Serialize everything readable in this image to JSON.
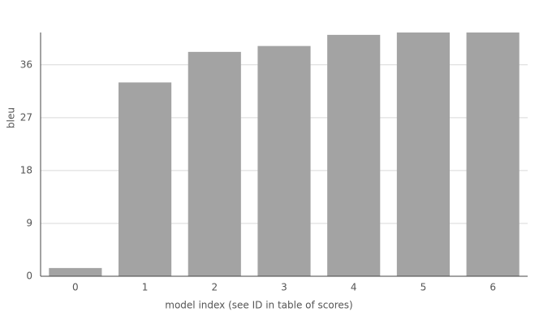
{
  "chart_data": {
    "type": "bar",
    "x_label": "model index (see ID in table of scores)",
    "y_label": "bleu",
    "categories": [
      "0",
      "1",
      "2",
      "3",
      "4",
      "5",
      "6"
    ],
    "values": [
      1.4,
      33.0,
      38.2,
      39.2,
      41.1,
      41.5,
      41.5
    ],
    "color": "#a3a3a3",
    "ylim": [
      0,
      41.5
    ],
    "yticks": [
      0,
      9,
      18,
      27,
      36
    ],
    "grid": true
  }
}
